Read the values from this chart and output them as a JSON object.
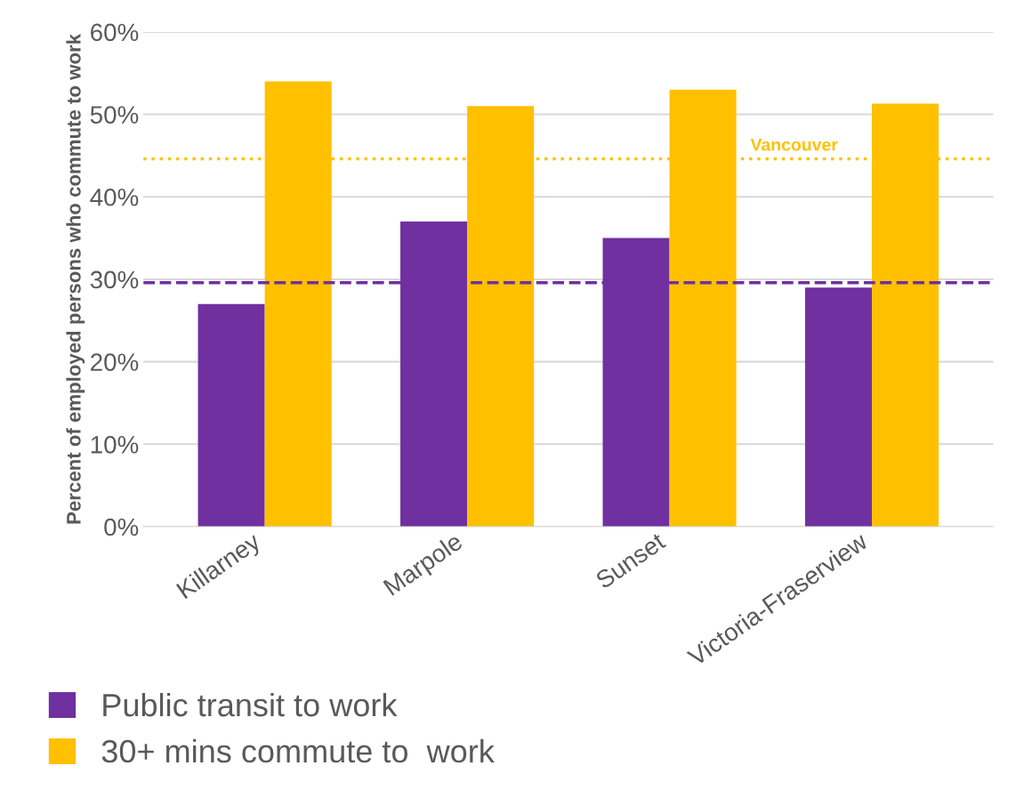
{
  "chart_data": {
    "type": "bar",
    "ylabel": "Percent of employed persons who commute to work",
    "categories": [
      "Killarney",
      "Marpole",
      "Sunset",
      "Victoria-Fraserview"
    ],
    "series": [
      {
        "name": "Public transit to work",
        "color": "#7030a0",
        "values": [
          27,
          37,
          35,
          29
        ]
      },
      {
        "name": "30+ mins commute to  work",
        "color": "#ffc000",
        "values": [
          54,
          51,
          53,
          51.3
        ]
      }
    ],
    "ylim": [
      0,
      60
    ],
    "yticks": [
      {
        "value": 0,
        "label": "0%"
      },
      {
        "value": 10,
        "label": "10%"
      },
      {
        "value": 20,
        "label": "20%"
      },
      {
        "value": 30,
        "label": "30%"
      },
      {
        "value": 40,
        "label": "40%"
      },
      {
        "value": 50,
        "label": "50%"
      },
      {
        "value": 60,
        "label": "60%"
      }
    ],
    "ref_lines": [
      {
        "axis": "y",
        "value": 44.6,
        "label": "Vancouver",
        "color": "#ffc000",
        "line_style": "dotted"
      },
      {
        "axis": "y",
        "value": 29.6,
        "label": null,
        "color": "#7030a0",
        "line_style": "dashed"
      }
    ],
    "grid": "y",
    "legend": "bottom"
  }
}
